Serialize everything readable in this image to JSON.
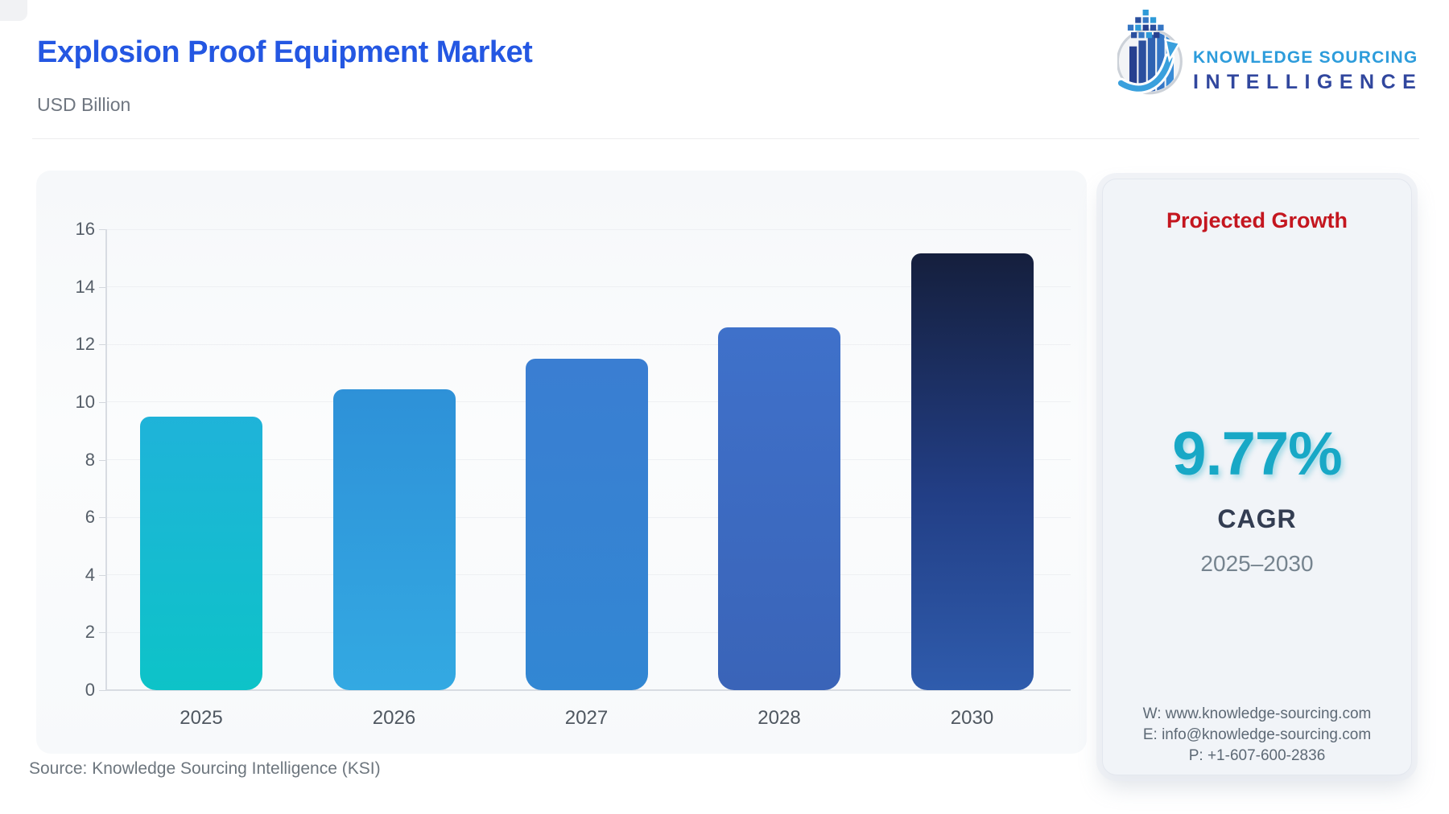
{
  "header": {
    "title": "Explosion Proof Equipment Market",
    "subtitle": "USD Billion",
    "title_color": "#2457e2"
  },
  "logo": {
    "line1": "KNOWLEDGE SOURCING",
    "line2": "INTELLIGENCE",
    "line1_color": "#2d9cdb",
    "line2_color": "#31479e",
    "icon": "growth-bars-arrow-globe-icon"
  },
  "chart_data": {
    "type": "bar",
    "title": "Explosion Proof Equipment Market",
    "unit": "USD Billion",
    "categories": [
      "2025",
      "2026",
      "2027",
      "2028",
      "2030"
    ],
    "values": [
      9.5,
      10.45,
      11.5,
      12.6,
      15.15
    ],
    "ylim": [
      0,
      16
    ],
    "ytick_step": 2,
    "grid": "horizontal",
    "legend": "none",
    "bar_gradients": [
      [
        "#1fb3d9",
        "#0dc3c8"
      ],
      [
        "#2e91d8",
        "#33a9e2"
      ],
      [
        "#3a7ed2",
        "#3287d3"
      ],
      [
        "#3f71ca",
        "#3a64b8"
      ],
      [
        "#151f3d 0%",
        "#223e85 55%",
        "#2f5cad 100%"
      ]
    ]
  },
  "growth_card": {
    "heading": "Projected Growth",
    "heading_color": "#c4161f",
    "value": "9.77%",
    "value_color": "#18a8c6",
    "label": "CAGR",
    "period": "2025–2030",
    "website": "W: www.knowledge-sourcing.com",
    "email": "E: info@knowledge-sourcing.com",
    "phone": "P: +1-607-600-2836"
  },
  "footer": {
    "source": "Source: Knowledge Sourcing Intelligence (KSI)"
  }
}
